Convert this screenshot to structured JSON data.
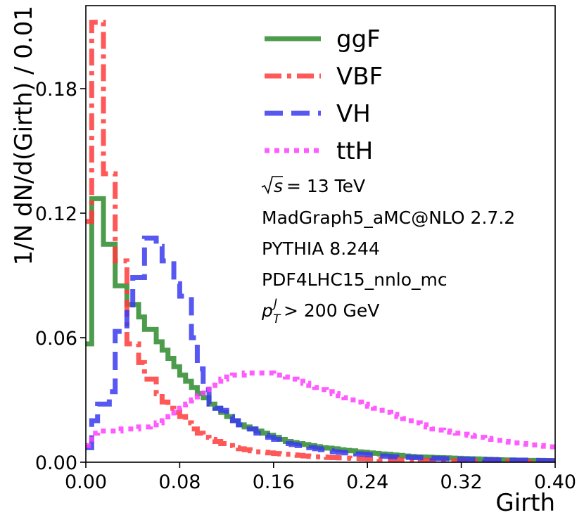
{
  "chart_data": {
    "type": "line",
    "xlabel": "Girth",
    "ylabel": "1/N dN/d(Girth) / 0.01",
    "xlim": [
      0.0,
      0.4
    ],
    "ylim": [
      0.0,
      0.22
    ],
    "xticks": [
      0.0,
      0.08,
      0.16,
      0.24,
      0.32,
      0.4
    ],
    "xtick_labels": [
      "0.00",
      "0.08",
      "0.16",
      "0.24",
      "0.32",
      "0.40"
    ],
    "yticks": [
      0.0,
      0.06,
      0.12,
      0.18
    ],
    "ytick_labels": [
      "0.00",
      "0.06",
      "0.12",
      "0.18"
    ],
    "bin_width": 0.005,
    "x_start": 0.0,
    "grid": false,
    "legend_position": "top-right",
    "series": [
      {
        "name": "ggF",
        "style": "solid",
        "color": "#2e8b2e",
        "values": [
          0.057,
          0.127,
          0.127,
          0.105,
          0.105,
          0.085,
          0.085,
          0.076,
          0.076,
          0.07,
          0.064,
          0.064,
          0.058,
          0.054,
          0.05,
          0.046,
          0.042,
          0.039,
          0.036,
          0.033,
          0.031,
          0.028,
          0.026,
          0.024,
          0.022,
          0.02,
          0.018,
          0.017,
          0.016,
          0.015,
          0.014,
          0.013,
          0.012,
          0.011,
          0.01,
          0.0095,
          0.009,
          0.0085,
          0.008,
          0.0075,
          0.007,
          0.0068,
          0.0065,
          0.006,
          0.0057,
          0.0055,
          0.005,
          0.0048,
          0.0045,
          0.0043,
          0.004,
          0.0038,
          0.0035,
          0.0033,
          0.003,
          0.0028,
          0.0026,
          0.0025,
          0.0024,
          0.0023,
          0.0022,
          0.0021,
          0.002,
          0.0019,
          0.0018,
          0.0017,
          0.0016,
          0.0015,
          0.0014,
          0.0013,
          0.0012,
          0.0011,
          0.0011,
          0.001,
          0.001,
          0.0009,
          0.0009,
          0.0008,
          0.0008,
          0.0007
        ]
      },
      {
        "name": "VBF",
        "style": "dashdot",
        "color": "#ff3b3b",
        "values": [
          0.116,
          0.212,
          0.212,
          0.139,
          0.139,
          0.097,
          0.097,
          0.057,
          0.057,
          0.048,
          0.04,
          0.04,
          0.033,
          0.029,
          0.026,
          0.024,
          0.022,
          0.019,
          0.016,
          0.014,
          0.012,
          0.011,
          0.01,
          0.009,
          0.008,
          0.007,
          0.0065,
          0.006,
          0.0055,
          0.005,
          0.0048,
          0.0045,
          0.0042,
          0.004,
          0.0038,
          0.0035,
          0.0033,
          0.003,
          0.0028,
          0.0026,
          0.0025,
          0.0023,
          0.0022,
          0.0021,
          0.002,
          0.0019,
          0.0018,
          0.0017,
          0.0016,
          0.0015,
          0.0014,
          0.0013,
          0.0012,
          0.0011,
          0.0011,
          0.001,
          0.001,
          0.0009,
          0.0009,
          0.0008,
          0.0008,
          0.0007,
          0.0007,
          0.0006,
          0.0006,
          0.0006,
          0.0005,
          0.0005,
          0.0005,
          0.0004,
          0.0004,
          0.0004,
          0.0004,
          0.0003,
          0.0003,
          0.0003,
          0.0003,
          0.0003,
          0.0002,
          0.0002
        ]
      },
      {
        "name": "VH",
        "style": "dashed",
        "color": "#3a3af0",
        "values": [
          0.007,
          0.02,
          0.028,
          0.028,
          0.034,
          0.063,
          0.063,
          0.074,
          0.089,
          0.089,
          0.108,
          0.108,
          0.104,
          0.097,
          0.097,
          0.086,
          0.08,
          0.08,
          0.06,
          0.045,
          0.035,
          0.028,
          0.026,
          0.025,
          0.022,
          0.02,
          0.018,
          0.016,
          0.016,
          0.014,
          0.013,
          0.012,
          0.011,
          0.01,
          0.009,
          0.0085,
          0.008,
          0.0075,
          0.007,
          0.0065,
          0.006,
          0.0055,
          0.005,
          0.0047,
          0.0045,
          0.0042,
          0.004,
          0.0038,
          0.0035,
          0.0033,
          0.003,
          0.0028,
          0.0026,
          0.0025,
          0.0024,
          0.0023,
          0.0022,
          0.0021,
          0.002,
          0.0019,
          0.0018,
          0.0017,
          0.0016,
          0.0015,
          0.0015,
          0.0014,
          0.0013,
          0.0013,
          0.0012,
          0.0012,
          0.0011,
          0.0011,
          0.001,
          0.001,
          0.001,
          0.0009,
          0.0009,
          0.0009,
          0.0008,
          0.0008
        ]
      },
      {
        "name": "ttH",
        "style": "dotted",
        "color": "#ff40ff",
        "values": [
          0.008,
          0.014,
          0.015,
          0.015,
          0.015,
          0.015,
          0.016,
          0.016,
          0.016,
          0.017,
          0.017,
          0.018,
          0.019,
          0.02,
          0.022,
          0.024,
          0.026,
          0.028,
          0.03,
          0.032,
          0.035,
          0.037,
          0.039,
          0.04,
          0.041,
          0.042,
          0.042,
          0.043,
          0.043,
          0.043,
          0.043,
          0.043,
          0.042,
          0.042,
          0.041,
          0.04,
          0.039,
          0.038,
          0.037,
          0.036,
          0.035,
          0.034,
          0.033,
          0.032,
          0.031,
          0.03,
          0.029,
          0.028,
          0.027,
          0.026,
          0.025,
          0.024,
          0.023,
          0.022,
          0.021,
          0.02,
          0.019,
          0.018,
          0.017,
          0.016,
          0.0155,
          0.015,
          0.0145,
          0.014,
          0.0135,
          0.013,
          0.0125,
          0.012,
          0.0115,
          0.011,
          0.0105,
          0.01,
          0.0097,
          0.0093,
          0.009,
          0.0087,
          0.0083,
          0.008,
          0.0077,
          0.0074
        ]
      }
    ],
    "annotations": [
      "√s = 13 TeV",
      "MadGraph5_aMC@NLO 2.7.2",
      "PYTHIA 8.244",
      "PDF4LHC15_nnlo_mc",
      "p_T^J > 200 GeV"
    ]
  }
}
